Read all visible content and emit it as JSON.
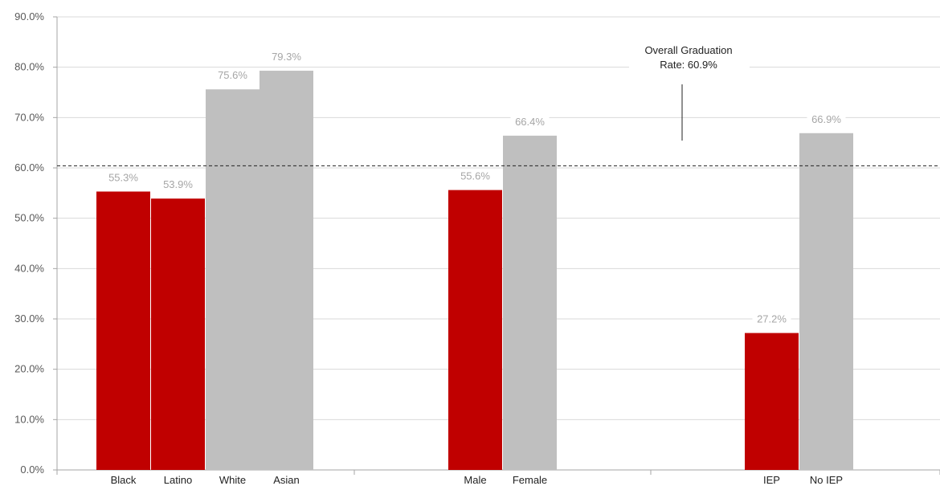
{
  "chart_data": {
    "type": "bar",
    "ylim": [
      0,
      90
    ],
    "y_ticks": [
      0,
      10,
      20,
      30,
      40,
      50,
      60,
      70,
      80,
      90
    ],
    "y_tick_labels": [
      "0.0%",
      "10.0%",
      "20.0%",
      "30.0%",
      "40.0%",
      "50.0%",
      "60.0%",
      "70.0%",
      "80.0%",
      "90.0%"
    ],
    "grid": true,
    "groups": [
      {
        "bars": [
          {
            "category": "Black",
            "value": 55.3,
            "label": "55.3%",
            "color": "#c00000"
          },
          {
            "category": "Latino",
            "value": 53.9,
            "label": "53.9%",
            "color": "#c00000"
          },
          {
            "category": "White",
            "value": 75.6,
            "label": "75.6%",
            "color": "#bfbfbf"
          },
          {
            "category": "Asian",
            "value": 79.3,
            "label": "79.3%",
            "color": "#bfbfbf"
          }
        ]
      },
      {
        "bars": [
          {
            "category": "Male",
            "value": 55.6,
            "label": "55.6%",
            "color": "#c00000"
          },
          {
            "category": "Female",
            "value": 66.4,
            "label": "66.4%",
            "color": "#bfbfbf"
          }
        ]
      },
      {
        "bars": [
          {
            "category": "IEP",
            "value": 27.2,
            "label": "27.2%",
            "color": "#c00000"
          },
          {
            "category": "No IEP",
            "value": 66.9,
            "label": "66.9%",
            "color": "#bfbfbf"
          }
        ]
      }
    ],
    "reference_line": {
      "value": 60.9,
      "style": "dashed",
      "annotation_lines": [
        "Overall Graduation",
        "Rate: 60.9%"
      ]
    }
  }
}
